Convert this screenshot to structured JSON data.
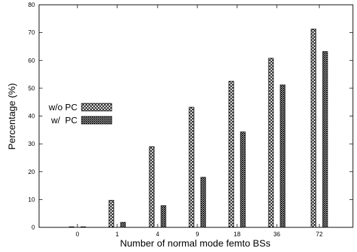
{
  "chart_data": {
    "type": "bar",
    "title": "",
    "xlabel": "Number of normal mode femto BSs",
    "ylabel": "Percentage (%)",
    "ylim": [
      0,
      80
    ],
    "yticks": [
      0,
      10,
      20,
      30,
      40,
      50,
      60,
      70,
      80
    ],
    "categories": [
      "0",
      "1",
      "4",
      "9",
      "18",
      "36",
      "72"
    ],
    "series": [
      {
        "name": "w/o PC",
        "pattern": "crosshatch",
        "values": [
          0,
          9.7,
          29,
          43.2,
          52.5,
          60.8,
          71.3
        ]
      },
      {
        "name": "w/  PC",
        "pattern": "dense-checker",
        "values": [
          0,
          1.8,
          7.8,
          18,
          34.3,
          51.2,
          63.2
        ]
      }
    ],
    "legend_position": "center-left",
    "grid": false
  }
}
